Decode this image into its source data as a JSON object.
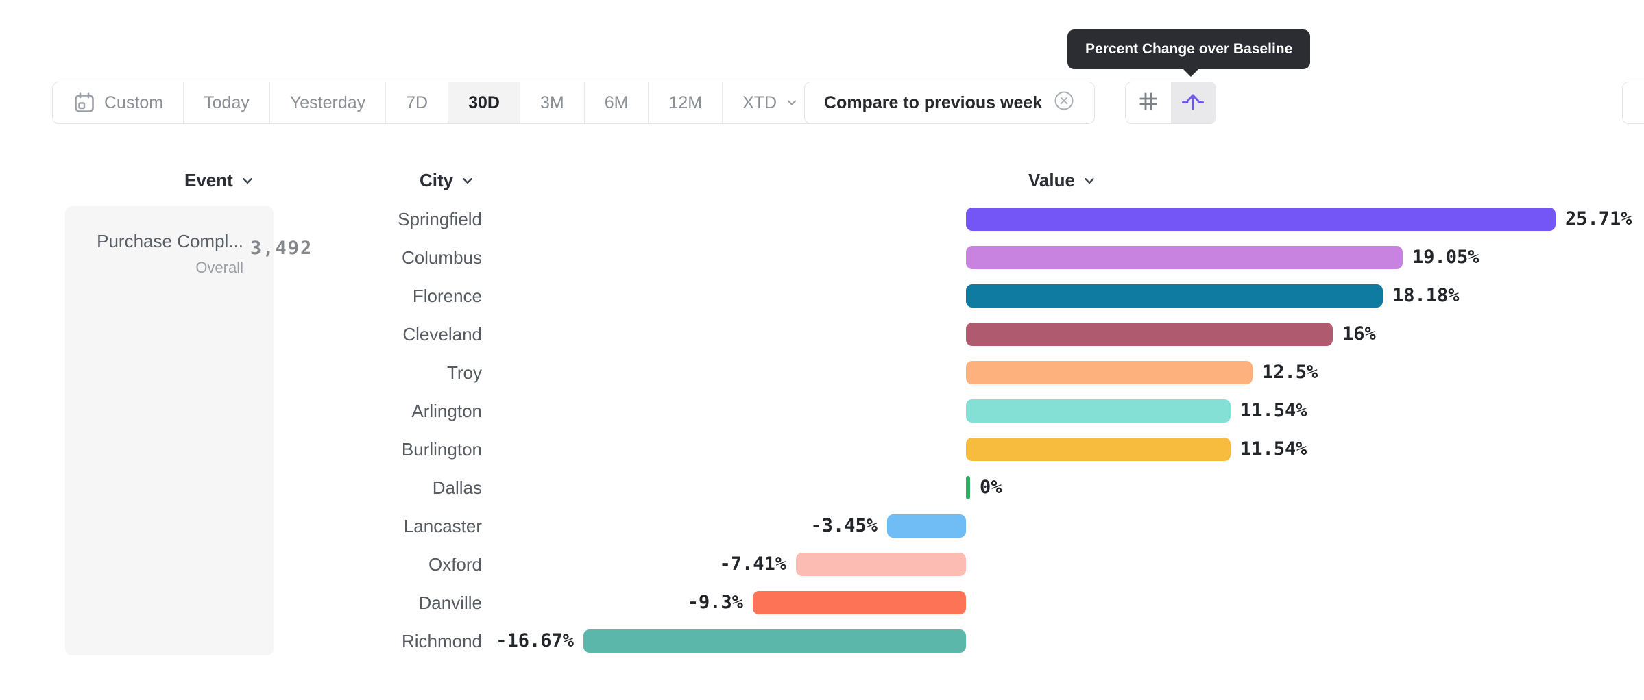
{
  "tooltip": {
    "text": "Percent Change over Baseline"
  },
  "toolbar": {
    "date_ranges": {
      "items": [
        {
          "label": "Custom",
          "icon": "calendar-icon"
        },
        {
          "label": "Today"
        },
        {
          "label": "Yesterday"
        },
        {
          "label": "7D"
        },
        {
          "label": "30D"
        },
        {
          "label": "3M"
        },
        {
          "label": "6M"
        },
        {
          "label": "12M"
        },
        {
          "label": "XTD",
          "icon": "chevron-down-icon"
        }
      ],
      "selected": "30D"
    },
    "compare_chip": {
      "label": "Compare to previous week",
      "icon": "circle-x-icon"
    },
    "view_toggle": {
      "items": [
        {
          "icon": "grid-icon",
          "selected": false
        },
        {
          "icon": "percent-change-arrow-icon",
          "selected": true
        }
      ]
    }
  },
  "columns": [
    {
      "label": "Event",
      "icon": "chevron-down-icon"
    },
    {
      "label": "City",
      "icon": "chevron-down-icon"
    },
    {
      "label": "Value",
      "icon": "chevron-down-icon"
    }
  ],
  "event_card": {
    "title": "Purchase Compl...",
    "overall_label": "Overall",
    "overall_value": "3,492"
  },
  "chart_data": {
    "type": "bar",
    "orientation": "horizontal",
    "title": "Percent Change over Baseline",
    "xlabel": "Value",
    "ylabel": "City",
    "categories": [
      "Springfield",
      "Columbus",
      "Florence",
      "Cleveland",
      "Troy",
      "Arlington",
      "Burlington",
      "Dallas",
      "Lancaster",
      "Oxford",
      "Danville",
      "Richmond"
    ],
    "values": [
      25.71,
      19.05,
      18.18,
      16,
      12.5,
      11.54,
      11.54,
      0,
      -3.45,
      -7.41,
      -9.3,
      -16.67
    ],
    "value_labels": [
      "25.71%",
      "19.05%",
      "18.18%",
      "16%",
      "12.5%",
      "11.54%",
      "11.54%",
      "0%",
      "-3.45%",
      "-7.41%",
      "-9.3%",
      "-16.67%"
    ],
    "bar_colors": [
      "#7456f6",
      "#c783df",
      "#0f7ba1",
      "#b05a70",
      "#fdb17d",
      "#84dfd4",
      "#f7bc3d",
      "#2fae63",
      "#70bcf4",
      "#fdbcb3",
      "#fd7355",
      "#5bb7aa"
    ],
    "xlim": [
      -16.67,
      25.71
    ],
    "grid": false,
    "legend": false
  },
  "colors": {
    "accent_purple": "#6c59ea",
    "tooltip_bg": "#2b2d33",
    "selected_segment_bg": "#f3f3f4",
    "border": "#e3e4e6",
    "muted_text": "#8b9096",
    "dark_text": "#26282b",
    "city_text": "#565b62",
    "card_bg": "#f6f6f7",
    "dallas_zero_green": "#2fae63"
  }
}
